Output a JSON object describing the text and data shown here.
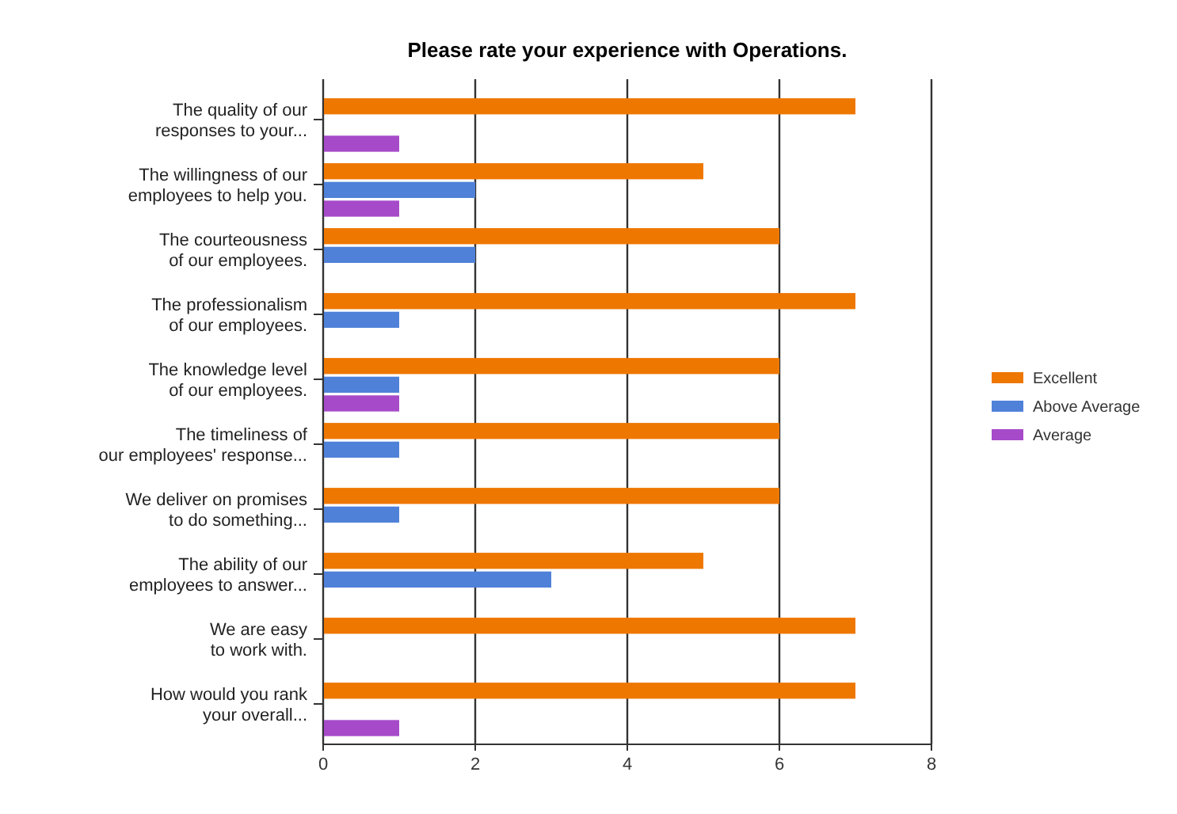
{
  "chart_data": {
    "type": "bar",
    "orientation": "horizontal",
    "title": "Please rate your experience with Operations.",
    "categories": [
      "The quality of our\nresponses to your...",
      "The willingness of our\nemployees to help you.",
      "The courteousness\nof our employees.",
      "The professionalism\nof our employees.",
      "The knowledge level\nof our employees.",
      "The timeliness of\nour employees' response...",
      "We deliver on promises\nto do something...",
      "The ability of our\nemployees to answer...",
      "We are easy\nto work with.",
      "How would you rank\nyour overall..."
    ],
    "series": [
      {
        "name": "Excellent",
        "color": "#ee7700",
        "values": [
          7,
          5,
          6,
          7,
          6,
          6,
          6,
          5,
          7,
          7
        ]
      },
      {
        "name": "Above Average",
        "color": "#4f81d8",
        "values": [
          null,
          2,
          2,
          1,
          1,
          1,
          1,
          3,
          null,
          null
        ]
      },
      {
        "name": "Average",
        "color": "#a64ac9",
        "values": [
          1,
          1,
          null,
          null,
          1,
          null,
          null,
          null,
          null,
          1
        ]
      }
    ],
    "xlim": [
      0,
      8
    ],
    "xticks": [
      0,
      2,
      4,
      6,
      8
    ],
    "grid": "x",
    "legend": "right"
  }
}
